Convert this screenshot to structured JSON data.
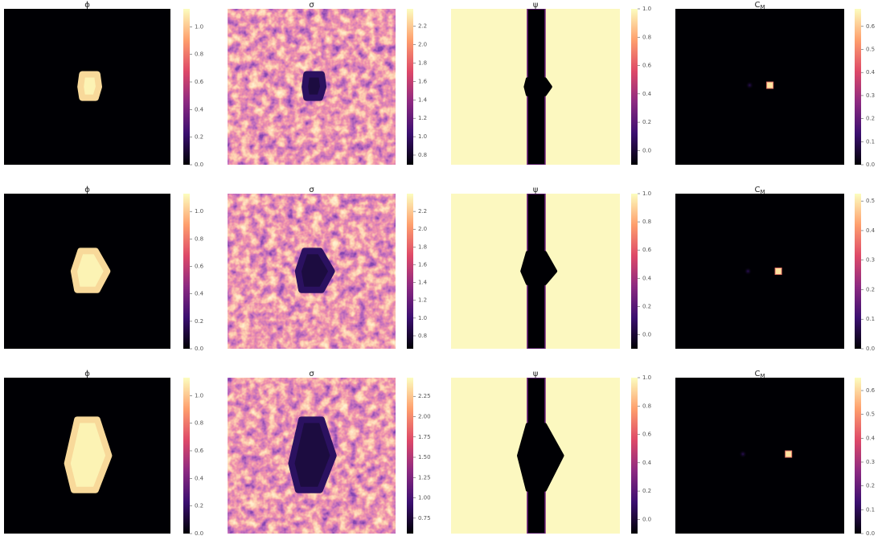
{
  "chart_data": [
    {
      "type": "heatmap",
      "title": "ϕ",
      "clim": [
        0,
        1.13
      ],
      "cticks": [
        {
          "value": 0,
          "label": "0.0"
        },
        0.2,
        0.4,
        0.6,
        0.8,
        {
          "value": 1,
          "label": "1.0"
        }
      ]
    },
    {
      "type": "heatmap",
      "title": "σ",
      "clim": [
        0.695,
        2.39
      ],
      "cticks": [
        0.8,
        {
          "value": 1,
          "label": "1.0"
        },
        1.2,
        1.4,
        1.6,
        1.8,
        {
          "value": 2,
          "label": "2.0"
        },
        2.2
      ]
    },
    {
      "type": "heatmap",
      "title": "ψ",
      "clim": [
        -0.1,
        1.0
      ],
      "cticks": [
        {
          "value": 0,
          "label": "0.0"
        },
        0.2,
        0.4,
        0.6,
        0.8,
        {
          "value": 1,
          "label": "1.0"
        }
      ]
    },
    {
      "type": "heatmap",
      "title": "C",
      "title_sub": "M",
      "clim": [
        0,
        0.676
      ],
      "cticks": [
        {
          "value": 0,
          "label": "0.0"
        },
        0.1,
        0.2,
        0.3,
        0.4,
        0.5,
        0.6
      ]
    },
    {
      "type": "heatmap",
      "title": "ϕ",
      "clim": [
        0,
        1.13
      ],
      "cticks": [
        {
          "value": 0,
          "label": "0.0"
        },
        0.2,
        0.4,
        0.6,
        0.8,
        {
          "value": 1,
          "label": "1.0"
        }
      ]
    },
    {
      "type": "heatmap",
      "title": "σ",
      "clim": [
        0.655,
        2.4
      ],
      "cticks": [
        0.8,
        {
          "value": 1,
          "label": "1.0"
        },
        1.2,
        1.4,
        1.6,
        1.8,
        {
          "value": 2,
          "label": "2.0"
        },
        2.2
      ]
    },
    {
      "type": "heatmap",
      "title": "ψ",
      "clim": [
        -0.1,
        1.0
      ],
      "cticks": [
        {
          "value": 0,
          "label": "0.0"
        },
        0.2,
        0.4,
        0.6,
        0.8,
        {
          "value": 1,
          "label": "1.0"
        }
      ]
    },
    {
      "type": "heatmap",
      "title": "C",
      "title_sub": "M",
      "clim": [
        0,
        0.525
      ],
      "cticks": [
        {
          "value": 0,
          "label": "0.0"
        },
        0.1,
        0.2,
        0.3,
        0.4,
        0.5
      ]
    },
    {
      "type": "heatmap",
      "title": "ϕ",
      "clim": [
        0,
        1.13
      ],
      "cticks": [
        {
          "value": 0,
          "label": "0.0"
        },
        0.2,
        0.4,
        0.6,
        0.8,
        {
          "value": 1,
          "label": "1.0"
        }
      ]
    },
    {
      "type": "heatmap",
      "title": "σ",
      "clim": [
        0.56,
        2.48
      ],
      "cticks": [
        0.75,
        {
          "value": 1,
          "label": "1.00"
        },
        1.25,
        {
          "value": 1.5,
          "label": "1.50"
        },
        1.75,
        {
          "value": 2,
          "label": "2.00"
        },
        2.25
      ]
    },
    {
      "type": "heatmap",
      "title": "ψ",
      "clim": [
        -0.1,
        1.0
      ],
      "cticks": [
        {
          "value": 0,
          "label": "0.0"
        },
        0.2,
        0.4,
        0.6,
        0.8,
        {
          "value": 1,
          "label": "1.0"
        }
      ]
    },
    {
      "type": "heatmap",
      "title": "C",
      "title_sub": "M",
      "clim": [
        0,
        0.654
      ],
      "cticks": [
        {
          "value": 0,
          "label": "0.0"
        },
        0.1,
        0.2,
        0.3,
        0.4,
        0.5,
        0.6
      ]
    }
  ]
}
